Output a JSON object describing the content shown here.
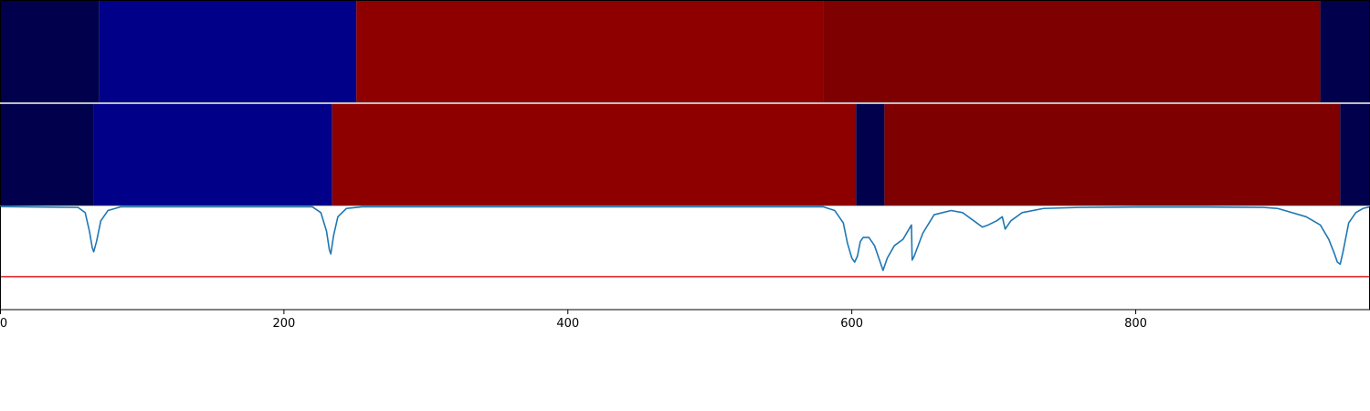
{
  "colors": {
    "background": "#ffffff",
    "frame": "#000000",
    "curve": "#1f77b4",
    "threshold": "#e31a1c",
    "segment_colors": {
      "dark_navy": "#00004d",
      "blue": "#000088",
      "red": "#8e0000",
      "dark_red": "#7e0000"
    }
  },
  "chart_data": [
    {
      "type": "heatmap",
      "title": "",
      "xlim": [
        0,
        965
      ],
      "segments": [
        {
          "start": 0,
          "end": 70,
          "color": "dark_navy"
        },
        {
          "start": 70,
          "end": 251,
          "color": "blue"
        },
        {
          "start": 251,
          "end": 580,
          "color": "red"
        },
        {
          "start": 580,
          "end": 930,
          "color": "dark_red"
        },
        {
          "start": 930,
          "end": 965,
          "color": "dark_navy"
        }
      ]
    },
    {
      "type": "heatmap",
      "title": "",
      "xlim": [
        0,
        965
      ],
      "segments": [
        {
          "start": 0,
          "end": 66,
          "color": "dark_navy"
        },
        {
          "start": 66,
          "end": 234,
          "color": "blue"
        },
        {
          "start": 234,
          "end": 603,
          "color": "red"
        },
        {
          "start": 603,
          "end": 623,
          "color": "dark_navy"
        },
        {
          "start": 623,
          "end": 944,
          "color": "dark_red"
        },
        {
          "start": 944,
          "end": 965,
          "color": "dark_navy"
        }
      ]
    },
    {
      "type": "line",
      "title": "",
      "xlabel": "",
      "ylabel": "",
      "xlim": [
        0,
        965
      ],
      "ylim": [
        -0.5,
        0.0
      ],
      "xticks": [
        0,
        200,
        400,
        600,
        800
      ],
      "xtick_labels": [
        "0",
        "200",
        "400",
        "600",
        "800"
      ],
      "threshold": -0.34,
      "grid": false,
      "x": [
        0,
        55,
        60,
        63,
        65,
        66,
        68,
        71,
        76,
        85,
        220,
        226,
        230,
        232,
        233,
        235,
        238,
        244,
        255,
        580,
        588,
        594,
        597,
        600,
        602,
        604,
        606,
        608,
        612,
        616,
        620,
        622,
        625,
        630,
        636,
        642,
        642.5,
        644,
        650,
        658,
        670,
        678,
        686,
        692,
        696,
        702,
        706,
        708,
        712,
        720,
        735,
        760,
        800,
        850,
        890,
        900,
        910,
        920,
        930,
        936,
        940,
        942,
        944,
        946,
        950,
        955,
        960,
        965
      ],
      "y": [
        -0.001,
        -0.005,
        -0.03,
        -0.12,
        -0.2,
        -0.22,
        -0.17,
        -0.07,
        -0.02,
        -0.002,
        -0.002,
        -0.03,
        -0.12,
        -0.21,
        -0.23,
        -0.14,
        -0.05,
        -0.01,
        -0.002,
        -0.002,
        -0.02,
        -0.08,
        -0.18,
        -0.25,
        -0.27,
        -0.24,
        -0.17,
        -0.15,
        -0.15,
        -0.19,
        -0.27,
        -0.31,
        -0.25,
        -0.19,
        -0.16,
        -0.09,
        -0.26,
        -0.24,
        -0.13,
        -0.04,
        -0.02,
        -0.03,
        -0.07,
        -0.1,
        -0.09,
        -0.07,
        -0.05,
        -0.11,
        -0.07,
        -0.03,
        -0.01,
        -0.005,
        -0.003,
        -0.003,
        -0.005,
        -0.01,
        -0.03,
        -0.05,
        -0.09,
        -0.16,
        -0.23,
        -0.27,
        -0.28,
        -0.22,
        -0.08,
        -0.03,
        -0.01,
        -0.002
      ]
    }
  ]
}
